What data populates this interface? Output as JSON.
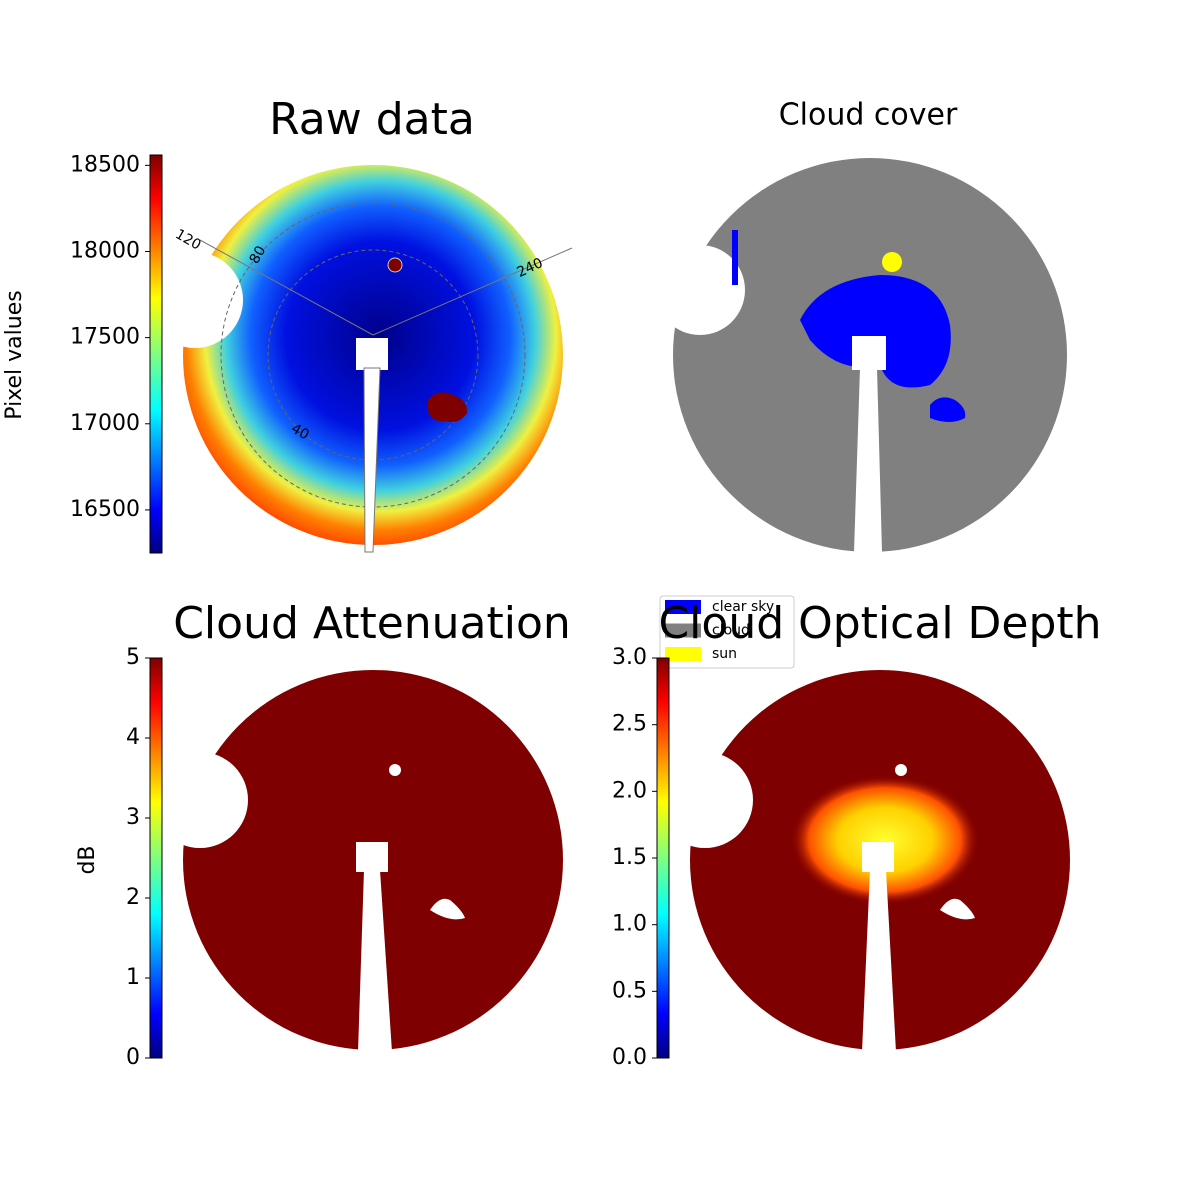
{
  "chart_data": [
    {
      "type": "image",
      "title": "Raw data",
      "colorbar_label": "Pixel values",
      "colormap": "jet",
      "ylim": [
        16250,
        18560
      ],
      "yticks": [
        16500,
        17000,
        17500,
        18000,
        18500
      ],
      "annotations": [
        "120",
        "80",
        "240",
        "40"
      ]
    },
    {
      "type": "image",
      "title": "Cloud cover",
      "series": [
        {
          "name": "clear sky",
          "color": "#0000ff"
        },
        {
          "name": "cloud",
          "color": "#808080"
        },
        {
          "name": "sun",
          "color": "#ffff00"
        }
      ]
    },
    {
      "type": "image",
      "title": "Cloud Attenuation",
      "colorbar_label": "dB",
      "colormap": "jet",
      "ylim": [
        0,
        5
      ],
      "yticks": [
        0,
        1,
        2,
        3,
        4,
        5
      ]
    },
    {
      "type": "image",
      "title": "Cloud Optical Depth",
      "colormap": "jet",
      "ylim": [
        0,
        3
      ],
      "yticks": [
        {
          "value": 0,
          "label": "0.0"
        },
        {
          "value": 0.5,
          "label": "0.5"
        },
        {
          "value": 1,
          "label": "1.0"
        },
        {
          "value": 1.5,
          "label": "1.5"
        },
        {
          "value": 2,
          "label": "2.0"
        },
        {
          "value": 2.5,
          "label": "2.5"
        },
        {
          "value": 3,
          "label": "3.0"
        }
      ]
    }
  ]
}
